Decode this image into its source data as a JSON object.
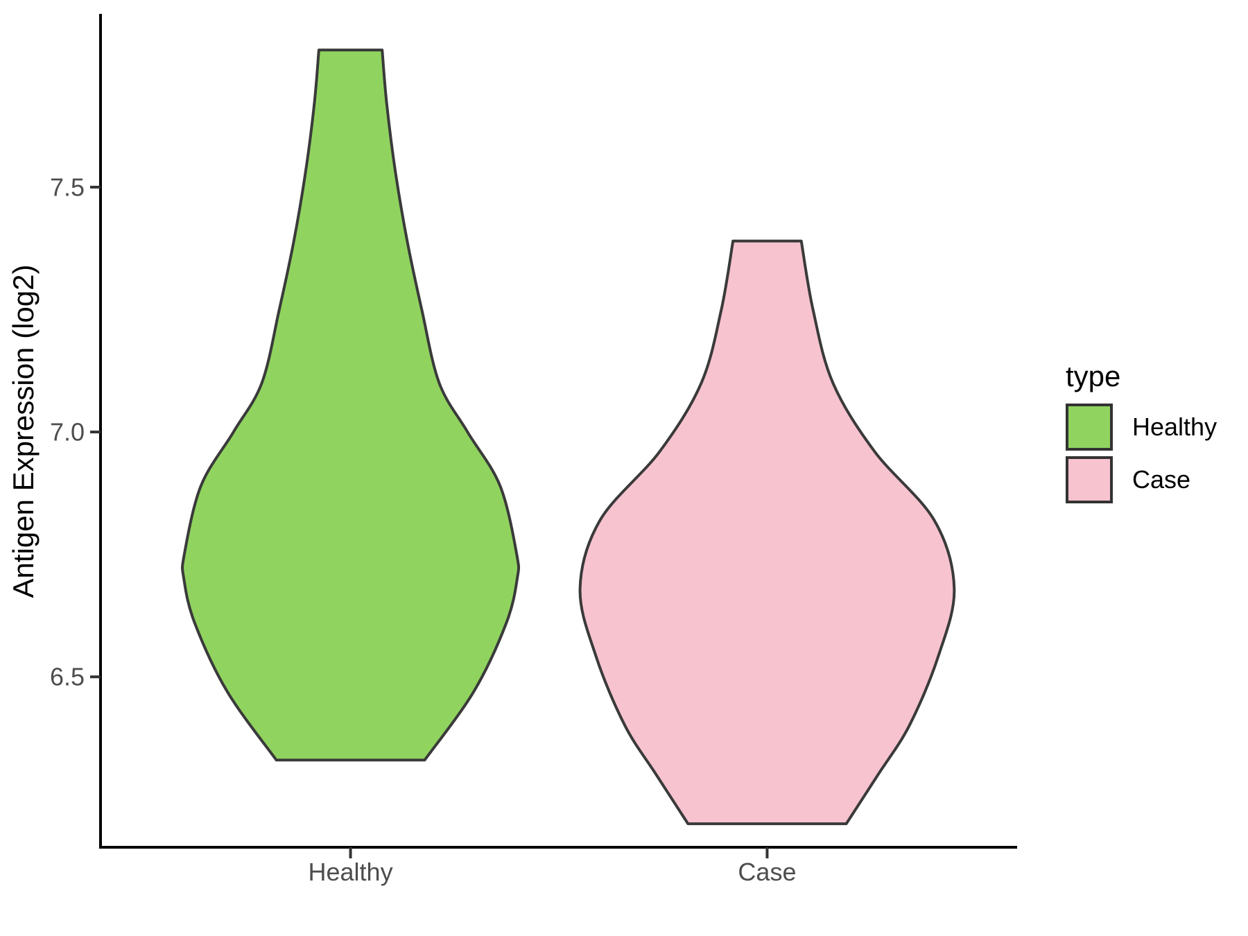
{
  "figure": {
    "background": "#FFFFFF"
  },
  "axes": {
    "y_title": "Antigen Expression (log2)",
    "x_title": "",
    "y_tick_labels": [
      "7.5",
      "7.0",
      "6.5"
    ],
    "y_tick_values": [
      7.5,
      7.0,
      6.5
    ],
    "x_tick_labels": [
      "Healthy",
      "Case"
    ],
    "tick_label_color": "#4D4D4D",
    "axis_line_color": "#000000"
  },
  "legend": {
    "title": "type",
    "items": [
      {
        "label": "Healthy",
        "color": "#90D45F",
        "border": "#333333"
      },
      {
        "label": "Case",
        "color": "#F7C3CF",
        "border": "#333333"
      }
    ]
  },
  "chart_data": {
    "type": "violin",
    "title": "",
    "xlabel": "",
    "ylabel": "Antigen Expression (log2)",
    "categories": [
      "Healthy",
      "Case"
    ],
    "y_range": [
      6.152,
      7.851
    ],
    "y_ticks": [
      6.5,
      7.0,
      7.5
    ],
    "grid": false,
    "legend_position": "right",
    "legend_title": "type",
    "series": [
      {
        "name": "Healthy",
        "fill": "#90D45F",
        "outline": "#3A3A3A",
        "min": 6.33,
        "max": 7.78,
        "profile": [
          [
            7.78,
            0.076
          ],
          [
            7.67,
            0.087
          ],
          [
            7.53,
            0.108
          ],
          [
            7.39,
            0.136
          ],
          [
            7.25,
            0.171
          ],
          [
            7.1,
            0.213
          ],
          [
            7.0,
            0.281
          ],
          [
            6.89,
            0.359
          ],
          [
            6.75,
            0.399
          ],
          [
            6.7,
            0.4
          ],
          [
            6.61,
            0.374
          ],
          [
            6.47,
            0.296
          ],
          [
            6.33,
            0.178
          ]
        ]
      },
      {
        "name": "Case",
        "fill": "#F7C3CF",
        "outline": "#3A3A3A",
        "min": 6.2,
        "max": 7.39,
        "profile": [
          [
            7.39,
            0.082
          ],
          [
            7.25,
            0.11
          ],
          [
            7.1,
            0.158
          ],
          [
            6.96,
            0.258
          ],
          [
            6.82,
            0.401
          ],
          [
            6.68,
            0.449
          ],
          [
            6.54,
            0.41
          ],
          [
            6.4,
            0.341
          ],
          [
            6.3,
            0.266
          ],
          [
            6.2,
            0.19
          ]
        ]
      }
    ]
  }
}
